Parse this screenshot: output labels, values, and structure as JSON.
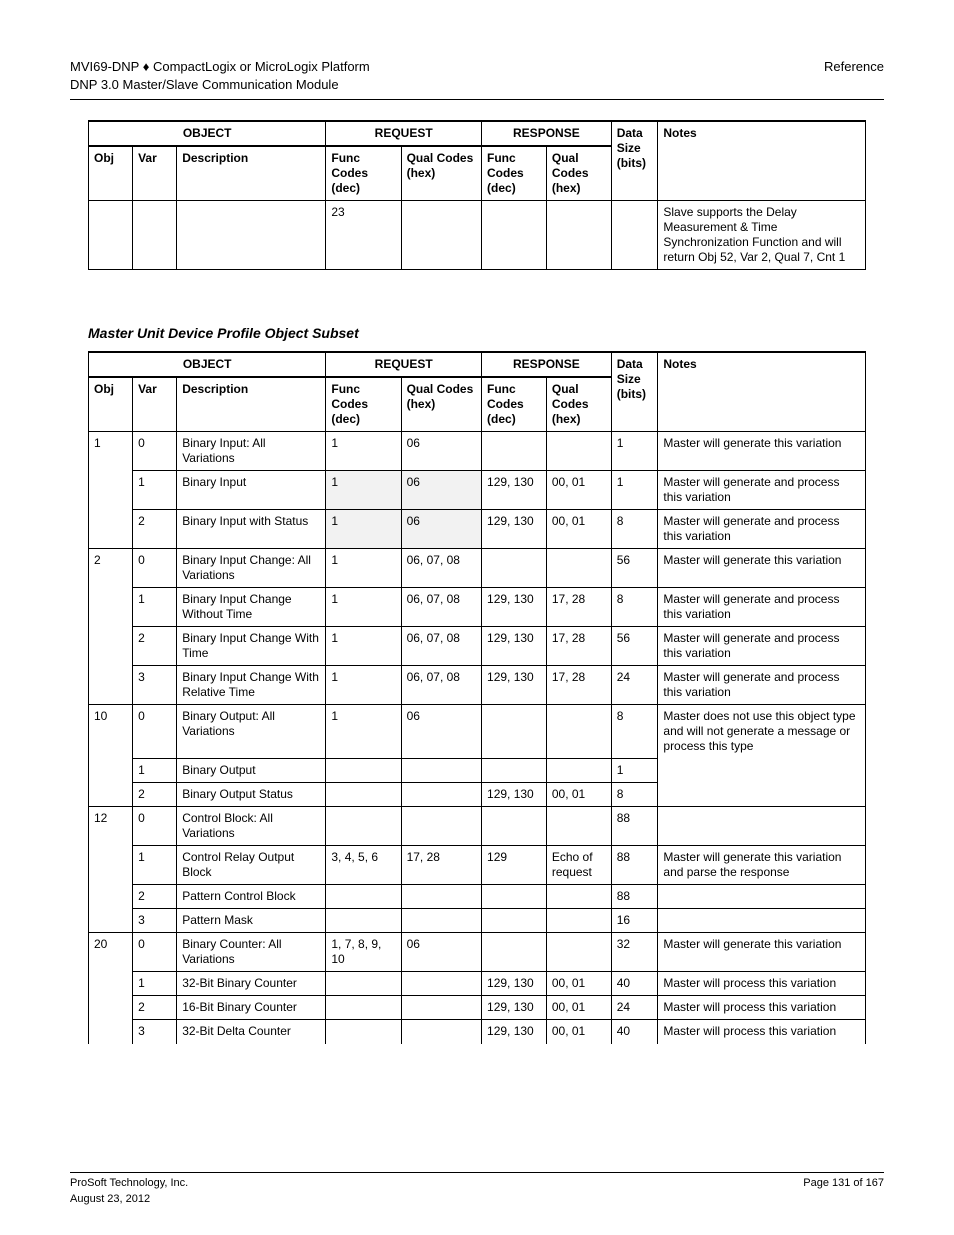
{
  "header": {
    "left1": "MVI69-DNP ♦ CompactLogix or MicroLogix Platform",
    "left2": "DNP 3.0 Master/Slave Communication Module",
    "right1": "Reference"
  },
  "table1": {
    "headers": {
      "object_group": "OBJECT",
      "request_group": "REQUEST",
      "response_group": "RESPONSE",
      "obj": "Obj",
      "var": "Var",
      "desc": "Description",
      "fc": "Func Codes (dec)",
      "qual": "Qual Codes (hex)",
      "size": "Data Size (bits)",
      "notes": "Notes"
    },
    "rows": [
      {
        "obj": "",
        "var": "",
        "desc": "",
        "fc1": "23",
        "qual1": "",
        "fc2": "",
        "qual2": "",
        "size": "",
        "notes": "Slave supports the Delay Measurement & Time Synchronization Function and will return Obj 52, Var 2, Qual 7, Cnt 1"
      }
    ]
  },
  "section_title": "Master Unit Device Profile Object Subset",
  "table2": {
    "headers": {
      "object_group": "OBJECT",
      "request_group": "REQUEST",
      "response_group": "RESPONSE",
      "obj": "Obj",
      "var": "Var",
      "desc": "Description",
      "fc": "Func Codes (dec)",
      "qual": "Qual Codes (hex)",
      "size": "Data Size (bits)",
      "notes": "Notes"
    },
    "rows": [
      {
        "obj": "1",
        "var": "0",
        "desc": "Binary Input: All Variations",
        "fc1": "1",
        "qual1": "06",
        "fc2": "",
        "qual2": "",
        "size": "1",
        "notes": "Master will generate this variation",
        "mergeObjDown": true
      },
      {
        "obj": "",
        "var": "1",
        "desc": "Binary Input",
        "fc1": "1",
        "qual1": "06",
        "fc2": "129, 130",
        "qual2": "00, 01",
        "size": "1",
        "notes": "Master will generate and process this variation",
        "shade": [
          "fc1",
          "qual1"
        ],
        "mergeObjUp": true,
        "mergeObjDown": true
      },
      {
        "obj": "",
        "var": "2",
        "desc": "Binary Input with Status",
        "fc1": "1",
        "qual1": "06",
        "fc2": "129, 130",
        "qual2": "00, 01",
        "size": "8",
        "notes": "Master will generate and process this variation",
        "shade": [
          "fc1",
          "qual1"
        ],
        "mergeObjUp": true
      },
      {
        "obj": "2",
        "var": "0",
        "desc": "Binary Input Change: All Variations",
        "fc1": "1",
        "qual1": "06, 07, 08",
        "fc2": "",
        "qual2": "",
        "size": "56",
        "notes": "Master will generate this variation",
        "mergeObjDown": true
      },
      {
        "obj": "",
        "var": "1",
        "desc": "Binary Input Change Without Time",
        "fc1": "1",
        "qual1": "06, 07, 08",
        "fc2": "129, 130",
        "qual2": "17, 28",
        "size": "8",
        "notes": "Master will generate and process this variation",
        "mergeObjUp": true,
        "mergeObjDown": true
      },
      {
        "obj": "",
        "var": "2",
        "desc": "Binary Input Change With Time",
        "fc1": "1",
        "qual1": "06, 07, 08",
        "fc2": "129, 130",
        "qual2": "17, 28",
        "size": "56",
        "notes": "Master will generate and process this variation",
        "mergeObjUp": true,
        "mergeObjDown": true
      },
      {
        "obj": "",
        "var": "3",
        "desc": "Binary Input Change With Relative Time",
        "fc1": "1",
        "qual1": "06, 07, 08",
        "fc2": "129, 130",
        "qual2": "17, 28",
        "size": "24",
        "notes": "Master will generate and process this variation",
        "mergeObjUp": true
      },
      {
        "obj": "10",
        "var": "0",
        "desc": "Binary Output: All Variations",
        "fc1": "1",
        "qual1": "06",
        "fc2": "",
        "qual2": "",
        "size": "8",
        "notes": "Master does not use this object type and will not generate a message or process this type",
        "mergeObjDown": true,
        "mergeNotesDown": true
      },
      {
        "obj": "",
        "var": "1",
        "desc": "Binary Output",
        "fc1": "",
        "qual1": "",
        "fc2": "",
        "qual2": "",
        "size": "1",
        "notes": "",
        "mergeObjUp": true,
        "mergeObjDown": true,
        "mergeNotesUp": true,
        "mergeNotesDown": true
      },
      {
        "obj": "",
        "var": "2",
        "desc": "Binary Output Status",
        "fc1": "",
        "qual1": "",
        "fc2": "129, 130",
        "qual2": "00, 01",
        "size": "8",
        "notes": "",
        "mergeObjUp": true,
        "mergeNotesUp": true
      },
      {
        "obj": "12",
        "var": "0",
        "desc": "Control Block: All Variations",
        "fc1": "",
        "qual1": "",
        "fc2": "",
        "qual2": "",
        "size": "88",
        "notes": "",
        "mergeObjDown": true
      },
      {
        "obj": "",
        "var": "1",
        "desc": "Control Relay Output Block",
        "fc1": "3, 4, 5, 6",
        "qual1": "17, 28",
        "fc2": "129",
        "qual2": "Echo of request",
        "size": "88",
        "notes": "Master will generate this variation and parse the response",
        "mergeObjUp": true,
        "mergeObjDown": true
      },
      {
        "obj": "",
        "var": "2",
        "desc": "Pattern Control Block",
        "fc1": "",
        "qual1": "",
        "fc2": "",
        "qual2": "",
        "size": "88",
        "notes": "",
        "mergeObjUp": true,
        "mergeObjDown": true
      },
      {
        "obj": "",
        "var": "3",
        "desc": "Pattern Mask",
        "fc1": "",
        "qual1": "",
        "fc2": "",
        "qual2": "",
        "size": "16",
        "notes": "",
        "mergeObjUp": true
      },
      {
        "obj": "20",
        "var": "0",
        "desc": "Binary Counter: All Variations",
        "fc1": "1, 7, 8, 9, 10",
        "qual1": "06",
        "fc2": "",
        "qual2": "",
        "size": "32",
        "notes": "Master will generate this variation",
        "mergeObjDown": true
      },
      {
        "obj": "",
        "var": "1",
        "desc": "32-Bit Binary Counter",
        "fc1": "",
        "qual1": "",
        "fc2": "129, 130",
        "qual2": "00, 01",
        "size": "40",
        "notes": "Master will process this variation",
        "mergeObjUp": true,
        "mergeObjDown": true
      },
      {
        "obj": "",
        "var": "2",
        "desc": "16-Bit Binary Counter",
        "fc1": "",
        "qual1": "",
        "fc2": "129, 130",
        "qual2": "00, 01",
        "size": "24",
        "notes": "Master will process this variation",
        "mergeObjUp": true,
        "mergeObjDown": true
      },
      {
        "obj": "",
        "var": "3",
        "desc": "32-Bit Delta Counter",
        "fc1": "",
        "qual1": "",
        "fc2": "129, 130",
        "qual2": "00, 01",
        "size": "40",
        "notes": "Master will process this variation",
        "mergeObjUp": true,
        "lastOpen": true
      }
    ]
  },
  "footer": {
    "left": "ProSoft Technology, Inc.",
    "right": "Page 131 of 167",
    "date": "August 23, 2012"
  }
}
